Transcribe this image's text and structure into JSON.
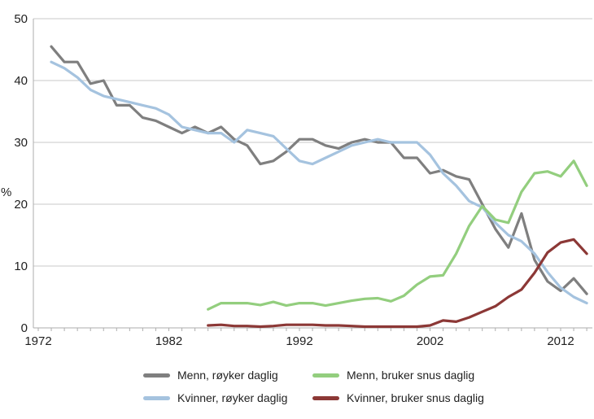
{
  "colors": {
    "background": "#ffffff",
    "text": "#1f1f1f",
    "gridline": "#c8c8c8",
    "axis": "#aeaeae",
    "series_menn_royker": "#7f7f7f",
    "series_kvinner_royker": "#a5c3df",
    "series_menn_snus": "#93ce7e",
    "series_kvinner_snus": "#8c3836"
  },
  "chart_data": {
    "type": "line",
    "title": "",
    "xlabel": "",
    "ylabel": "%",
    "ylim": [
      0,
      50
    ],
    "xlim": [
      1972,
      2014.5
    ],
    "grid": "horizontal",
    "legend_position": "bottom",
    "y_ticks": [
      0,
      10,
      20,
      30,
      40,
      50
    ],
    "x_ticks": [
      1972,
      1982,
      1992,
      2002,
      2012
    ],
    "minor_tick_years": [
      1972,
      2014
    ],
    "series": [
      {
        "id": "menn-royker-daglig",
        "name": "Menn, røyker daglig",
        "color": "#7f7f7f",
        "start_year": 1973,
        "values": [
          45.5,
          43,
          43,
          39.5,
          40,
          36,
          36,
          34,
          33.5,
          32.5,
          31.5,
          32.5,
          31.5,
          32.5,
          30.5,
          29.5,
          26.5,
          27,
          28.5,
          30.5,
          30.5,
          29.5,
          29,
          30,
          30.5,
          30,
          30,
          27.5,
          27.5,
          25,
          25.5,
          24.5,
          24,
          20,
          16,
          13,
          18.5,
          11,
          7.5,
          6,
          8,
          5.5
        ]
      },
      {
        "id": "kvinner-royker-daglig",
        "name": "Kvinner, røyker daglig",
        "color": "#a5c3df",
        "start_year": 1973,
        "values": [
          43,
          42,
          40.5,
          38.5,
          37.5,
          37,
          36.5,
          36,
          35.5,
          34.5,
          32.5,
          32,
          31.5,
          31.5,
          30,
          32,
          31.5,
          31,
          29,
          27,
          26.5,
          27.5,
          28.5,
          29.5,
          30,
          30.5,
          30,
          30,
          30,
          28,
          25,
          23,
          20.5,
          19.5,
          17,
          15,
          14,
          12,
          9,
          6.5,
          5,
          4
        ]
      },
      {
        "id": "menn-bruker-snus-daglig",
        "name": "Menn, bruker snus daglig",
        "color": "#93ce7e",
        "start_year": 1985,
        "values": [
          3,
          4,
          4,
          4,
          3.7,
          4.2,
          3.6,
          4,
          4,
          3.6,
          4,
          4.4,
          4.7,
          4.8,
          4.3,
          5.2,
          7,
          8.3,
          8.5,
          12,
          16.5,
          19.7,
          17.5,
          17,
          22,
          25,
          25.3,
          24.5,
          27,
          23
        ]
      },
      {
        "id": "kvinner-bruker-snus-daglig",
        "name": "Kvinner, bruker snus daglig",
        "color": "#8c3836",
        "start_year": 1985,
        "values": [
          0.4,
          0.5,
          0.3,
          0.3,
          0.2,
          0.3,
          0.5,
          0.5,
          0.5,
          0.4,
          0.4,
          0.3,
          0.2,
          0.2,
          0.2,
          0.2,
          0.2,
          0.4,
          1.2,
          1,
          1.7,
          2.6,
          3.5,
          5,
          6.2,
          8.9,
          12.2,
          13.8,
          14.3,
          12
        ]
      }
    ]
  }
}
